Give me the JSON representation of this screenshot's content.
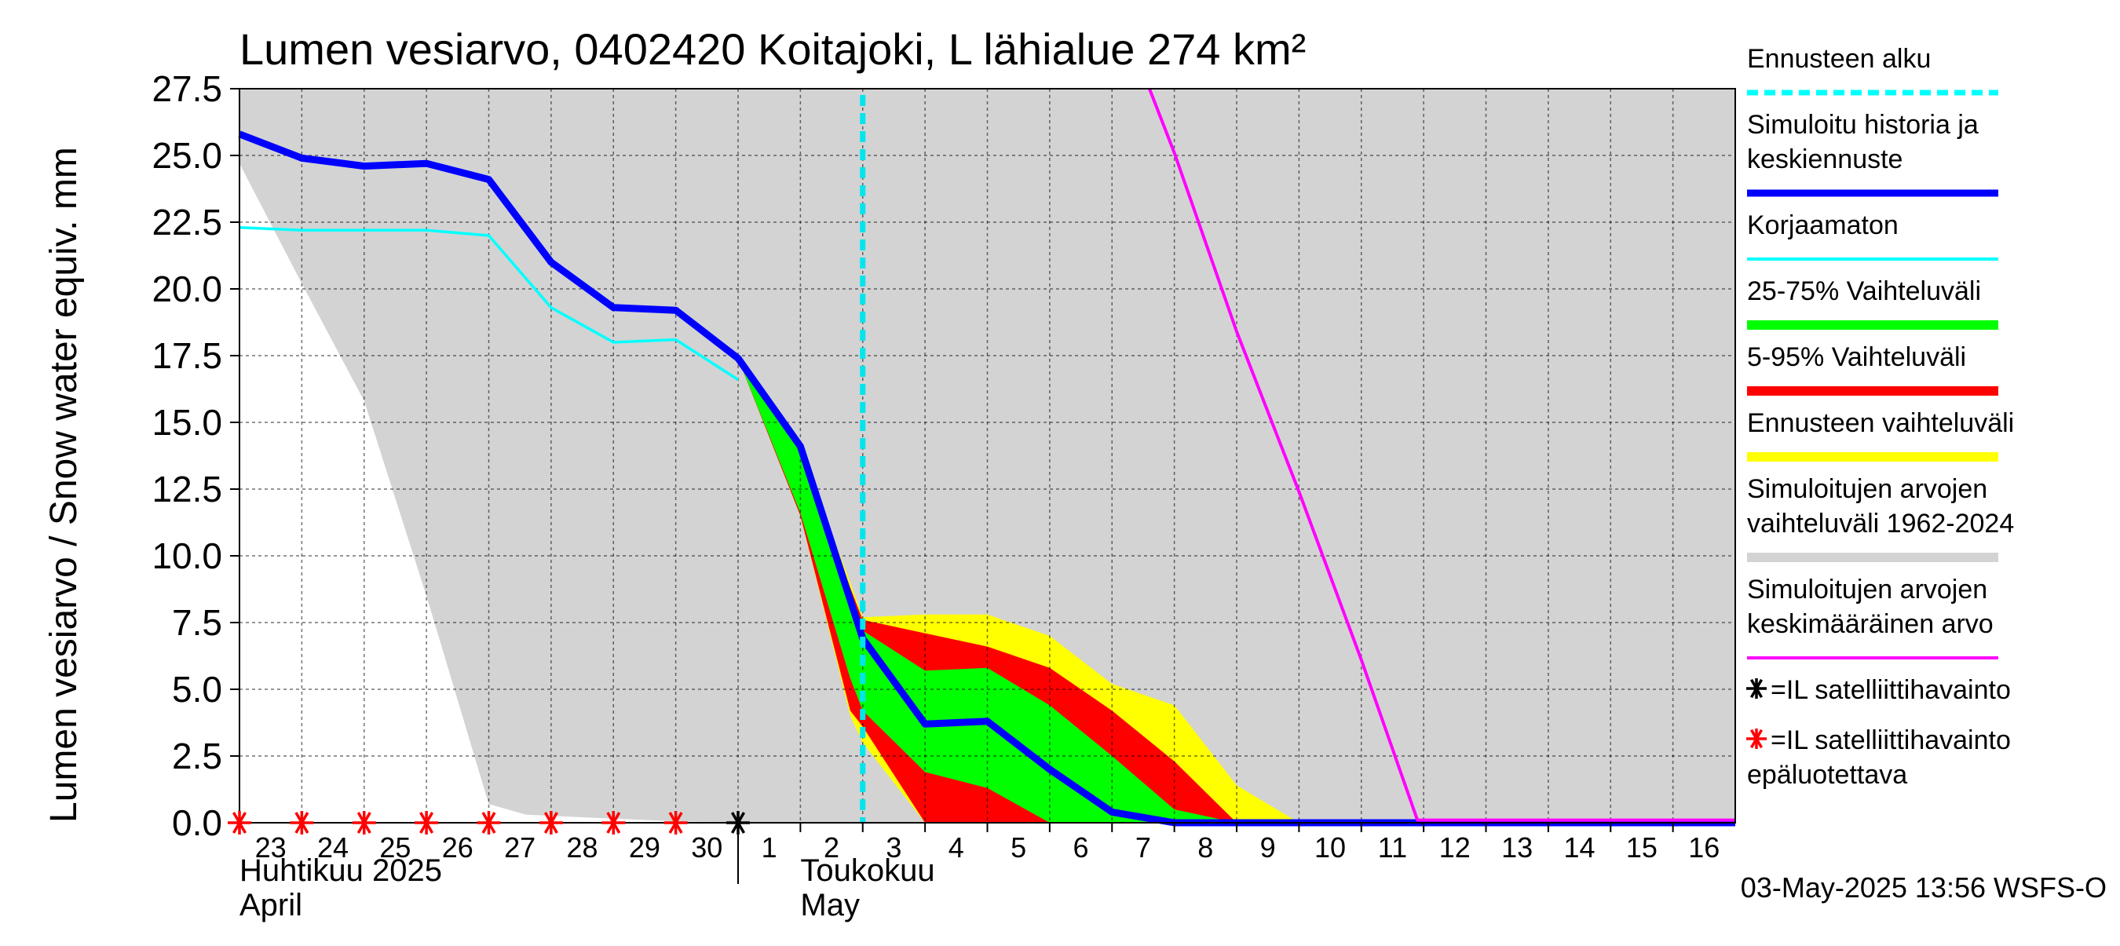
{
  "chart_data": {
    "type": "line",
    "title": "Lumen vesiarvo, 0402420 Koitajoki, L lähialue 274 km²",
    "ylabel": "Lumen vesiarvo / Snow water equiv.    mm",
    "ylim": [
      0,
      27.5
    ],
    "xlim": [
      23,
      47
    ],
    "grid": true,
    "yticks": [
      "0.0",
      "2.5",
      "5.0",
      "7.5",
      "10.0",
      "12.5",
      "15.0",
      "17.5",
      "20.0",
      "22.5",
      "25.0",
      "27.5"
    ],
    "xticks": [
      {
        "x": 23,
        "label": "23"
      },
      {
        "x": 24,
        "label": "24"
      },
      {
        "x": 25,
        "label": "25"
      },
      {
        "x": 26,
        "label": "26"
      },
      {
        "x": 27,
        "label": "27"
      },
      {
        "x": 28,
        "label": "28"
      },
      {
        "x": 29,
        "label": "29"
      },
      {
        "x": 30,
        "label": "30"
      },
      {
        "x": 31,
        "label": "1"
      },
      {
        "x": 32,
        "label": "2"
      },
      {
        "x": 33,
        "label": "3"
      },
      {
        "x": 34,
        "label": "4"
      },
      {
        "x": 35,
        "label": "5"
      },
      {
        "x": 36,
        "label": "6"
      },
      {
        "x": 37,
        "label": "7"
      },
      {
        "x": 38,
        "label": "8"
      },
      {
        "x": 39,
        "label": "9"
      },
      {
        "x": 40,
        "label": "10"
      },
      {
        "x": 41,
        "label": "11"
      },
      {
        "x": 42,
        "label": "12"
      },
      {
        "x": 43,
        "label": "13"
      },
      {
        "x": 44,
        "label": "14"
      },
      {
        "x": 45,
        "label": "15"
      },
      {
        "x": 46,
        "label": "16"
      }
    ],
    "month_labels": [
      {
        "x": 23,
        "line1": "Huhtikuu  2025",
        "line2": "April"
      },
      {
        "x": 32,
        "line1": "Toukokuu",
        "line2": "May"
      }
    ],
    "forecast_start_x": 33,
    "series": [
      {
        "name": "Simuloitujen arvojen vaihteluväli 1962-2024",
        "kind": "band",
        "color": "#d3d3d3",
        "x": [
          23,
          24,
          25,
          26,
          27,
          27.6,
          30,
          32,
          33,
          34,
          40,
          41.9,
          47
        ],
        "upper": [
          27.5,
          27.5,
          27.5,
          27.5,
          27.5,
          27.5,
          27.5,
          27.5,
          27.5,
          27.5,
          27.5,
          27.5,
          27.5
        ],
        "lower": [
          24.7,
          20.2,
          15.8,
          8.5,
          0.7,
          0.3,
          0.05,
          0,
          0,
          0,
          0,
          0,
          0
        ]
      },
      {
        "name": "Ennusteen vaihteluväli",
        "kind": "band",
        "color": "#ffff00",
        "x": [
          31,
          32,
          32.8,
          33,
          34,
          35,
          36,
          37,
          38,
          39,
          40
        ],
        "upper": [
          17.4,
          14.0,
          9.0,
          7.7,
          7.8,
          7.8,
          7.0,
          5.2,
          4.4,
          1.4,
          0
        ],
        "lower": [
          17.4,
          11.5,
          4.0,
          3.0,
          0,
          0,
          0,
          0,
          0,
          0,
          0
        ]
      },
      {
        "name": "5-95% Vaihteluväli",
        "kind": "band",
        "color": "#ff0000",
        "x": [
          31,
          32,
          32.8,
          33,
          34,
          35,
          36,
          37,
          38,
          39,
          40
        ],
        "upper": [
          17.4,
          14.0,
          8.8,
          7.6,
          7.1,
          6.6,
          5.8,
          4.2,
          2.3,
          0,
          0
        ],
        "lower": [
          17.4,
          11.5,
          4.2,
          3.6,
          0,
          0,
          0,
          0,
          0,
          0,
          0
        ]
      },
      {
        "name": "25-75% Vaihteluväli",
        "kind": "band",
        "color": "#00ff00",
        "x": [
          31,
          32,
          32.8,
          33,
          34,
          35,
          36,
          37,
          38,
          39,
          40
        ],
        "upper": [
          17.4,
          14.0,
          8.5,
          7.2,
          5.7,
          5.8,
          4.4,
          2.5,
          0.5,
          0,
          0
        ],
        "lower": [
          17.4,
          11.6,
          5.4,
          4.2,
          1.9,
          1.3,
          0,
          0,
          0,
          0,
          0
        ]
      },
      {
        "name": "Korjaamaton",
        "kind": "line",
        "color": "#00ffff",
        "x": [
          23,
          24,
          25,
          26,
          27,
          28,
          29,
          30,
          31
        ],
        "y": [
          22.3,
          22.2,
          22.2,
          22.2,
          22.0,
          19.3,
          18.0,
          18.1,
          16.6
        ]
      },
      {
        "name": "Simuloitu historia ja keskiennuste",
        "kind": "line",
        "color": "#0000ff",
        "x": [
          23,
          24,
          25,
          26,
          27,
          28,
          29,
          30,
          31,
          32,
          33,
          34,
          35,
          36,
          37,
          38,
          39,
          40,
          47
        ],
        "y": [
          25.8,
          24.9,
          24.6,
          24.7,
          24.1,
          21.0,
          19.3,
          19.2,
          17.4,
          14.1,
          6.9,
          3.7,
          3.8,
          2.0,
          0.4,
          0,
          0,
          0,
          0
        ]
      },
      {
        "name": "Simuloitujen arvojen keskimääräinen arvo",
        "kind": "line",
        "color": "#ff00ff",
        "x": [
          37.6,
          38,
          39,
          40,
          41,
          41.9,
          47
        ],
        "y": [
          27.5,
          25.1,
          18.4,
          12.4,
          6.1,
          0.1,
          0.1
        ]
      }
    ],
    "observations_unreliable": [
      23,
      24,
      25,
      26,
      27,
      28,
      29,
      30
    ],
    "observations": [
      31
    ],
    "legend": [
      {
        "label": "Ennusteen alku",
        "color": "#00ffff",
        "style": "dashed"
      },
      {
        "label": "Simuloitu historia ja keskiennuste",
        "color": "#0000ff",
        "style": "thick"
      },
      {
        "label": "Korjaamaton",
        "color": "#00ffff",
        "style": "line"
      },
      {
        "label": "25-75% Vaihteluväli",
        "color": "#00ff00",
        "style": "band"
      },
      {
        "label": "5-95% Vaihteluväli",
        "color": "#ff0000",
        "style": "band"
      },
      {
        "label": "Ennusteen vaihteluväli",
        "color": "#ffff00",
        "style": "band"
      },
      {
        "label": "Simuloitujen arvojen vaihteluväli 1962-2024",
        "color": "#d3d3d3",
        "style": "band"
      },
      {
        "label": "Simuloitujen arvojen keskimääräinen arvo",
        "color": "#ff00ff",
        "style": "line"
      },
      {
        "label": "=IL satelliittihavainto",
        "color": "#000000",
        "style": "star"
      },
      {
        "label": "=IL satelliittihavainto epäluotettava",
        "color": "#ff0000",
        "style": "star"
      }
    ],
    "legend_position": "right",
    "timestamp": "03-May-2025 13:56 WSFS-O"
  }
}
